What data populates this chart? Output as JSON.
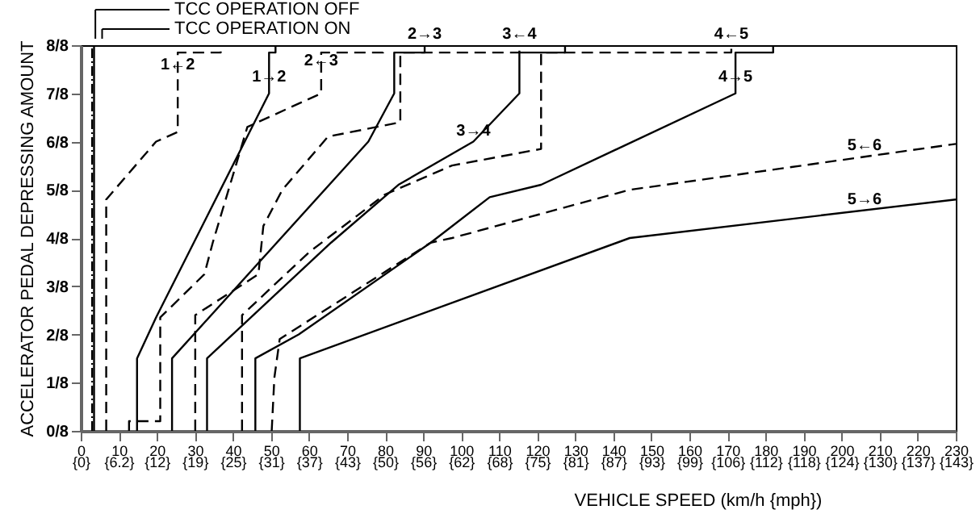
{
  "chart_data": {
    "type": "line",
    "xlabel": "VEHICLE SPEED (km/h {mph})",
    "ylabel": "ACCELERATOR PEDAL DEPRESSING AMOUNT",
    "xlim": [
      0,
      230
    ],
    "xticks": [
      0,
      10,
      20,
      30,
      40,
      50,
      60,
      70,
      80,
      90,
      100,
      110,
      120,
      130,
      140,
      150,
      160,
      170,
      180,
      190,
      200,
      210,
      220,
      230
    ],
    "x2lim": [
      0,
      142.92
    ],
    "x2ticks": [
      {
        "value": 0,
        "label": "{0}"
      },
      {
        "value": 6.21,
        "label": "{6.2}"
      },
      {
        "value": 12.43,
        "label": "{12}"
      },
      {
        "value": 18.64,
        "label": "{19}"
      },
      {
        "value": 24.85,
        "label": "{25}"
      },
      {
        "value": 31.07,
        "label": "{31}"
      },
      {
        "value": 37.28,
        "label": "{37}"
      },
      {
        "value": 43.5,
        "label": "{43}"
      },
      {
        "value": 49.71,
        "label": "{50}"
      },
      {
        "value": 55.92,
        "label": "{56}"
      },
      {
        "value": 62.14,
        "label": "{62}"
      },
      {
        "value": 68.35,
        "label": "{68}"
      },
      {
        "value": 74.56,
        "label": "{75}"
      },
      {
        "value": 80.78,
        "label": "{81}"
      },
      {
        "value": 86.99,
        "label": "{87}"
      },
      {
        "value": 93.21,
        "label": "{93}"
      },
      {
        "value": 99.42,
        "label": "{99}"
      },
      {
        "value": 105.63,
        "label": "{106}"
      },
      {
        "value": 111.85,
        "label": "{112}"
      },
      {
        "value": 118.06,
        "label": "{118}"
      },
      {
        "value": 124.27,
        "label": "{124}"
      },
      {
        "value": 130.49,
        "label": "{130}"
      },
      {
        "value": 136.7,
        "label": "{137}"
      },
      {
        "value": 142.92,
        "label": "{143}"
      }
    ],
    "ylim": [
      0,
      1
    ],
    "yticks": [
      {
        "value": 0,
        "label": "0/8"
      },
      {
        "value": 0.125,
        "label": "1/8"
      },
      {
        "value": 0.25,
        "label": "2/8"
      },
      {
        "value": 0.375,
        "label": "3/8"
      },
      {
        "value": 0.5,
        "label": "4/8"
      },
      {
        "value": 0.625,
        "label": "5/8"
      },
      {
        "value": 0.75,
        "label": "6/8"
      },
      {
        "value": 0.875,
        "label": "7/8"
      },
      {
        "value": 1,
        "label": "8/8"
      }
    ],
    "grid": false,
    "marker": "none",
    "series": [
      {
        "color": "#000000",
        "line_style": "dotted",
        "x": [
          3.0,
          3.0
        ],
        "values": [
          0,
          1
        ]
      },
      {
        "color": "#000000",
        "line_style": "solid",
        "x": [
          3.5,
          3.5
        ],
        "values": [
          0,
          1
        ]
      },
      {
        "color": "#000000",
        "line_style": "dashed",
        "x": [
          6.7,
          6.7,
          19.8,
          25.5,
          25.5,
          36.8,
          36.8
        ],
        "values": [
          0,
          0.6,
          0.75,
          0.775,
          0.981,
          0.981,
          1
        ]
      },
      {
        "color": "#000000",
        "line_style": "solid",
        "x": [
          14.8,
          14.8,
          19.8,
          49.5,
          49.5,
          51.2,
          51.2
        ],
        "values": [
          0,
          0.188,
          0.294,
          0.875,
          0.981,
          0.981,
          1
        ]
      },
      {
        "color": "#000000",
        "line_style": "dashed",
        "x": [
          12.7,
          12.7,
          20.9,
          20.9,
          32.5,
          34.7,
          43.8,
          63.2,
          63.2,
          79.5,
          79.5
        ],
        "values": [
          0,
          0.025,
          0.025,
          0.294,
          0.406,
          0.488,
          0.788,
          0.875,
          0.981,
          0.981,
          1
        ]
      },
      {
        "color": "#000000",
        "line_style": "solid",
        "x": [
          24.0,
          24.0,
          75.6,
          82.4,
          82.4,
          90.4,
          90.4
        ],
        "values": [
          0,
          0.188,
          0.75,
          0.875,
          0.981,
          0.981,
          1
        ]
      },
      {
        "color": "#000000",
        "line_style": "dashed",
        "x": [
          30.1,
          30.1,
          46.7,
          48.0,
          53.0,
          65.0,
          84.0,
          84.0,
          115.3,
          115.3
        ],
        "values": [
          0,
          0.3,
          0.406,
          0.531,
          0.625,
          0.763,
          0.8,
          0.981,
          0.981,
          1
        ]
      },
      {
        "color": "#000000",
        "line_style": "solid",
        "x": [
          33.2,
          33.2,
          65.8,
          83.5,
          103.2,
          115.3,
          115.3,
          127.3,
          127.3
        ],
        "values": [
          0,
          0.188,
          0.488,
          0.638,
          0.75,
          0.875,
          0.981,
          0.981,
          1
        ]
      },
      {
        "color": "#000000",
        "line_style": "dashed",
        "x": [
          42.4,
          42.4,
          60.0,
          80.0,
          97.6,
          121.0,
          121.0,
          171.0,
          171.0
        ],
        "values": [
          0,
          0.3,
          0.463,
          0.613,
          0.688,
          0.731,
          0.981,
          0.981,
          1
        ]
      },
      {
        "color": "#000000",
        "line_style": "solid",
        "x": [
          45.9,
          45.9,
          57.3,
          92.0,
          107.5,
          121.0,
          172.1,
          172.1,
          182.0,
          182.0
        ],
        "values": [
          0,
          0.188,
          0.25,
          0.488,
          0.606,
          0.638,
          0.875,
          0.981,
          0.981,
          1
        ]
      },
      {
        "color": "#000000",
        "line_style": "dashed",
        "x": [
          50.2,
          50.9,
          52.3,
          92.0,
          97.6,
          144.3,
          230.0
        ],
        "values": [
          0,
          0.138,
          0.238,
          0.488,
          0.5,
          0.625,
          0.744
        ]
      },
      {
        "color": "#000000",
        "line_style": "solid",
        "x": [
          57.6,
          57.6,
          144.3,
          230.0
        ],
        "values": [
          0,
          0.188,
          0.5,
          0.6
        ]
      }
    ],
    "annotations": [
      "TCC OPERATION OFF",
      "TCC OPERATION ON",
      {
        "text": "1←2",
        "x": 25.5,
        "y": 0.92
      },
      {
        "text": "1→2",
        "x": 49.5,
        "y": 0.89
      },
      {
        "text": "2←3",
        "x": 63.2,
        "y": 0.93
      },
      {
        "text": "2→3",
        "x": 90.4,
        "y": 1
      },
      {
        "text": "3←4",
        "x": 115.3,
        "y": 1
      },
      {
        "text": "3→4",
        "x": 103.2,
        "y": 0.75
      },
      {
        "text": "4←5",
        "x": 171,
        "y": 1
      },
      {
        "text": "4→5",
        "x": 172.1,
        "y": 0.89
      },
      {
        "text": "5←6",
        "x": 206,
        "y": 0.711
      },
      {
        "text": "5→6",
        "x": 206,
        "y": 0.572
      }
    ]
  }
}
